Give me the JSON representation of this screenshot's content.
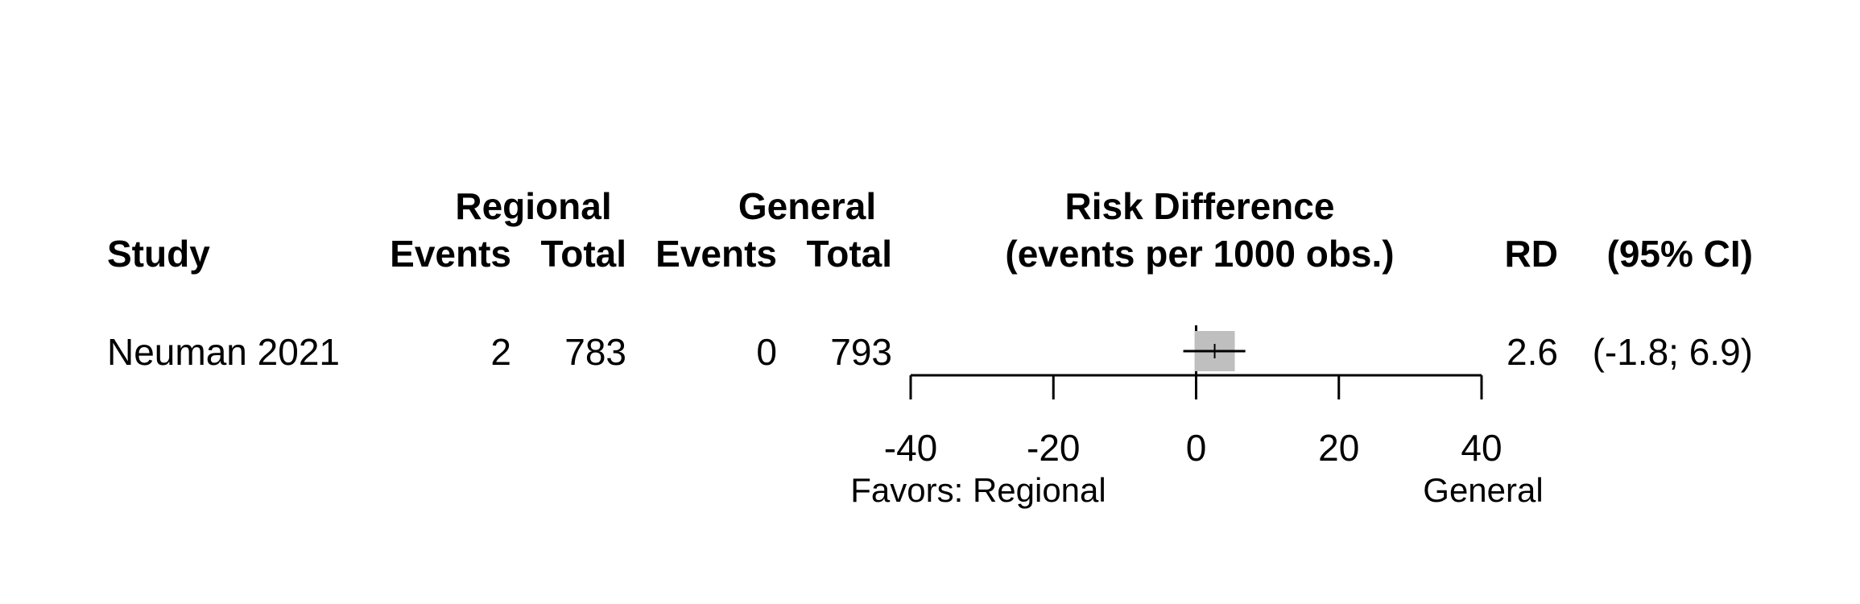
{
  "headers": {
    "study": "Study",
    "regional_group": "Regional",
    "general_group": "General",
    "events": "Events",
    "total": "Total",
    "effect_title": "Risk Difference",
    "effect_subtitle": "(events per 1000 obs.)",
    "rd": "RD",
    "ci": "(95% CI)"
  },
  "rows": [
    {
      "study": "Neuman 2021",
      "regional_events": "2",
      "regional_total": "783",
      "general_events": "0",
      "general_total": "793",
      "rd_text": "2.6",
      "ci_text": "(-1.8; 6.9)"
    }
  ],
  "axis_labels": {
    "left": "Favors: Regional",
    "right": "General"
  },
  "chart_data": {
    "type": "forest",
    "estimates": [
      {
        "study": "Neuman 2021",
        "rd": 2.6,
        "lower": -1.8,
        "upper": 6.9,
        "weight_pct": 100
      }
    ],
    "null_value": 0,
    "xlim": [
      -40,
      40
    ],
    "xticks": [
      -40,
      -20,
      0,
      20,
      40
    ],
    "box_color": "#bfbfbf"
  }
}
